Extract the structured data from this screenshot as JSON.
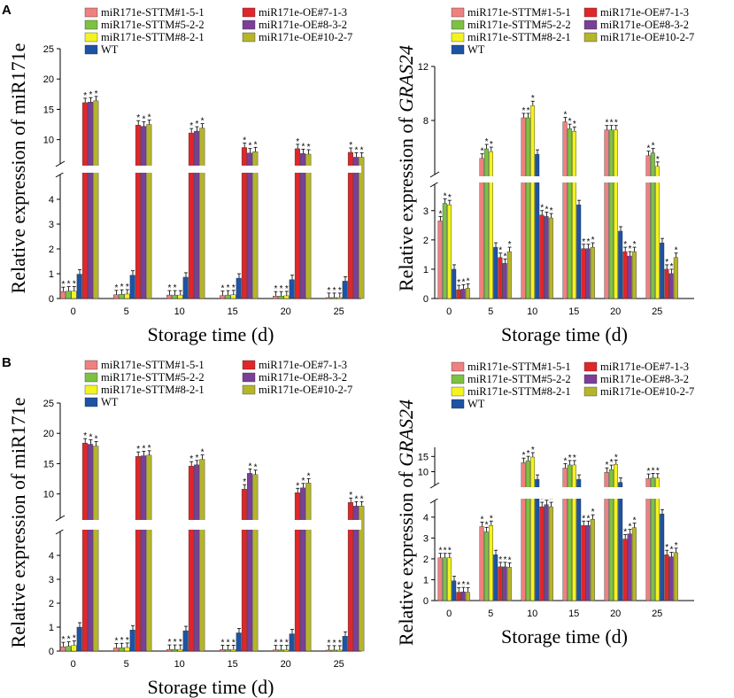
{
  "panel_labels": [
    "A",
    "B"
  ],
  "series_colors": [
    "#f08080",
    "#7cc242",
    "#f3f321",
    "#1c53a4",
    "#e0262a",
    "#7a3f98",
    "#b5b52a"
  ],
  "chart_data": [
    {
      "id": "A-left",
      "panel": "A",
      "type": "bar",
      "title": "",
      "xlabel": "Storage time (d)",
      "ylabel": "Relative expression of miR171e",
      "ylabel_italic": "",
      "categories": [
        "0",
        "5",
        "10",
        "15",
        "20",
        "25"
      ],
      "y_break": true,
      "lower_ylim": [
        0,
        5
      ],
      "lower_ticks": [
        "0",
        "1",
        "2",
        "3",
        "4"
      ],
      "upper_ylim": [
        6,
        25
      ],
      "upper_ticks": [
        "10",
        "15",
        "20",
        "25"
      ],
      "legend": [
        "miR171e-STTM#1-5-1",
        "miR171e-OE#7-1-3",
        "miR171e-STTM#5-2-2",
        "miR171e-OE#8-3-2",
        "miR171e-STTM#8-2-1",
        "miR171e-OE#10-2-7",
        "WT"
      ],
      "series": [
        {
          "name": "miR171e-STTM#1-5-1",
          "values": [
            0.28,
            0.15,
            0.14,
            0.12,
            0.1,
            0.04
          ],
          "stars": [
            "*",
            "*",
            "*",
            "*",
            "*",
            "*"
          ]
        },
        {
          "name": "miR171e-STTM#5-2-2",
          "values": [
            0.3,
            0.17,
            0.14,
            0.14,
            0.1,
            0.04
          ],
          "stars": [
            "*",
            "*",
            "*",
            "*",
            "*",
            "*"
          ]
        },
        {
          "name": "miR171e-STTM#8-2-1",
          "values": [
            0.3,
            0.18,
            0.14,
            0.15,
            0.11,
            0.04
          ],
          "stars": [
            "*",
            "*",
            "",
            "*",
            "*",
            "*"
          ]
        },
        {
          "name": "WT",
          "values": [
            0.98,
            0.94,
            0.86,
            0.82,
            0.76,
            0.7
          ],
          "stars": [
            "",
            "",
            "",
            "",
            "",
            ""
          ]
        },
        {
          "name": "miR171e-OE#7-1-3",
          "values": [
            16.1,
            12.4,
            11.1,
            8.7,
            8.5,
            7.9
          ],
          "stars": [
            "*",
            "*",
            "*",
            "*",
            "*",
            "*"
          ]
        },
        {
          "name": "miR171e-OE#8-3-2",
          "values": [
            16.2,
            12.2,
            11.4,
            7.8,
            7.7,
            7.1
          ],
          "stars": [
            "*",
            "*",
            "*",
            "*",
            "*",
            "*"
          ]
        },
        {
          "name": "miR171e-OE#10-2-7",
          "values": [
            16.4,
            12.5,
            11.9,
            8.0,
            7.6,
            7.1
          ],
          "stars": [
            "*",
            "*",
            "*",
            "*",
            "*",
            "*"
          ]
        }
      ]
    },
    {
      "id": "A-right",
      "panel": "A",
      "type": "bar",
      "title": "",
      "xlabel": "Storage time (d)",
      "ylabel": "Relative expression of ",
      "ylabel_italic": "GRAS24",
      "categories": [
        "0",
        "5",
        "10",
        "15",
        "20",
        "25"
      ],
      "y_break": true,
      "lower_ylim": [
        0,
        3.9
      ],
      "lower_ticks": [
        "0",
        "1",
        "2",
        "3"
      ],
      "upper_ylim": [
        4,
        12
      ],
      "upper_ticks": [
        "8",
        "12"
      ],
      "legend": [
        "miR171e-STTM#1-5-1",
        "miR171e-OE#7-1-3",
        "miR171e-STTM#5-2-2",
        "miR171e-OE#8-3-2",
        "miR171e-STTM#8-2-1",
        "miR171e-OE#10-2-7",
        "WT"
      ],
      "series": [
        {
          "name": "miR171e-STTM#1-5-1",
          "values": [
            2.65,
            5.2,
            8.2,
            7.9,
            7.3,
            5.4
          ],
          "stars": [
            "*",
            "*",
            "*",
            "*",
            "*",
            "*"
          ]
        },
        {
          "name": "miR171e-STTM#5-2-2",
          "values": [
            3.25,
            5.9,
            8.2,
            7.4,
            7.3,
            5.6
          ],
          "stars": [
            "*",
            "*",
            "*",
            "*",
            "*",
            "*"
          ]
        },
        {
          "name": "miR171e-STTM#8-2-1",
          "values": [
            3.2,
            5.7,
            9.1,
            7.2,
            7.3,
            4.6
          ],
          "stars": [
            "*",
            "*",
            "*",
            "*",
            "*",
            "*"
          ]
        },
        {
          "name": "WT",
          "values": [
            1.0,
            1.75,
            5.5,
            3.2,
            2.3,
            1.9
          ],
          "stars": [
            "",
            "",
            "",
            "",
            "",
            ""
          ]
        },
        {
          "name": "miR171e-OE#7-1-3",
          "values": [
            0.3,
            1.4,
            2.85,
            1.7,
            1.6,
            1.0
          ],
          "stars": [
            "*",
            "*",
            "*",
            "*",
            "*",
            "*"
          ]
        },
        {
          "name": "miR171e-OE#8-3-2",
          "values": [
            0.32,
            1.2,
            2.8,
            1.7,
            1.45,
            0.85
          ],
          "stars": [
            "*",
            "*",
            "*",
            "*",
            "*",
            "*"
          ]
        },
        {
          "name": "miR171e-OE#10-2-7",
          "values": [
            0.35,
            1.6,
            2.75,
            1.75,
            1.6,
            1.4
          ],
          "stars": [
            "*",
            "*",
            "*",
            "*",
            "*",
            "*"
          ]
        }
      ]
    },
    {
      "id": "B-left",
      "panel": "B",
      "type": "bar",
      "title": "",
      "xlabel": "Storage time (d)",
      "ylabel": "Relative expression of miR171e",
      "ylabel_italic": "",
      "categories": [
        "0",
        "5",
        "10",
        "15",
        "20",
        "25"
      ],
      "y_break": true,
      "lower_ylim": [
        0,
        5
      ],
      "lower_ticks": [
        "0",
        "1",
        "2",
        "3",
        "4"
      ],
      "upper_ylim": [
        6,
        25
      ],
      "upper_ticks": [
        "10",
        "15",
        "20",
        "25"
      ],
      "legend": [
        "miR171e-STTM#1-5-1",
        "miR171e-OE#7-1-3",
        "miR171e-STTM#5-2-2",
        "miR171e-OE#8-3-2",
        "miR171e-STTM#8-2-1",
        "miR171e-OE#10-2-7",
        "WT"
      ],
      "series": [
        {
          "name": "miR171e-STTM#1-5-1",
          "values": [
            0.18,
            0.13,
            0.07,
            0.06,
            0.05,
            0.04
          ],
          "stars": [
            "*",
            "*",
            "*",
            "*",
            "*",
            "*"
          ]
        },
        {
          "name": "miR171e-STTM#5-2-2",
          "values": [
            0.2,
            0.14,
            0.07,
            0.06,
            0.05,
            0.04
          ],
          "stars": [
            "*",
            "*",
            "*",
            "*",
            "*",
            "*"
          ]
        },
        {
          "name": "miR171e-STTM#8-2-1",
          "values": [
            0.24,
            0.15,
            0.07,
            0.06,
            0.05,
            0.04
          ],
          "stars": [
            "*",
            "*",
            "*",
            "*",
            "*",
            "*"
          ]
        },
        {
          "name": "WT",
          "values": [
            1.0,
            0.88,
            0.85,
            0.76,
            0.72,
            0.62
          ],
          "stars": [
            "",
            "",
            "",
            "",
            "",
            ""
          ]
        },
        {
          "name": "miR171e-OE#7-1-3",
          "values": [
            18.4,
            16.2,
            14.6,
            10.8,
            10.2,
            8.6
          ],
          "stars": [
            "*",
            "*",
            "*",
            "*",
            "*",
            "*"
          ]
        },
        {
          "name": "miR171e-OE#8-3-2",
          "values": [
            18.2,
            16.3,
            14.8,
            13.4,
            11.0,
            8.0
          ],
          "stars": [
            "*",
            "*",
            "*",
            "*",
            "*",
            "*"
          ]
        },
        {
          "name": "miR171e-OE#10-2-7",
          "values": [
            17.9,
            16.4,
            15.7,
            13.2,
            11.8,
            8.0
          ],
          "stars": [
            "*",
            "*",
            "*",
            "*",
            "*",
            "*"
          ]
        }
      ]
    },
    {
      "id": "B-right",
      "panel": "B",
      "type": "bar",
      "title": "",
      "xlabel": "Storage time (d)",
      "ylabel": "Relative expression of ",
      "ylabel_italic": "GRAS24",
      "categories": [
        "0",
        "5",
        "10",
        "15",
        "20",
        "25"
      ],
      "y_break": true,
      "lower_ylim": [
        0,
        4.8
      ],
      "lower_ticks": [
        "0",
        "1",
        "2",
        "3",
        "4"
      ],
      "upper_ylim": [
        5.5,
        18
      ],
      "upper_ticks": [
        "10",
        "15"
      ],
      "legend": [
        "miR171e-STTM#1-5-1",
        "miR171e-OE#7-1-3",
        "miR171e-STTM#5-2-2",
        "miR171e-OE#8-3-2",
        "miR171e-STTM#8-2-1",
        "miR171e-OE#10-2-7",
        "WT"
      ],
      "series": [
        {
          "name": "miR171e-STTM#1-5-1",
          "values": [
            2.05,
            3.55,
            13.0,
            11.2,
            9.8,
            7.8
          ],
          "stars": [
            "*",
            "*",
            "*",
            "*",
            "*",
            "*"
          ]
        },
        {
          "name": "miR171e-STTM#5-2-2",
          "values": [
            2.05,
            3.3,
            13.6,
            12.2,
            10.7,
            8.0
          ],
          "stars": [
            "*",
            "*",
            "*",
            "*",
            "*",
            "*"
          ]
        },
        {
          "name": "miR171e-STTM#8-2-1",
          "values": [
            2.05,
            3.6,
            14.8,
            12.2,
            12.4,
            7.9
          ],
          "stars": [
            "*",
            "*",
            "*",
            "*",
            "*",
            "*"
          ]
        },
        {
          "name": "WT",
          "values": [
            0.95,
            2.2,
            7.5,
            7.5,
            6.5,
            4.15
          ],
          "stars": [
            "",
            "",
            "",
            "",
            "",
            ""
          ]
        },
        {
          "name": "miR171e-OE#7-1-3",
          "values": [
            0.4,
            1.62,
            4.5,
            3.6,
            2.95,
            2.2
          ],
          "stars": [
            "*",
            "*",
            "*",
            "*",
            "*",
            "*"
          ]
        },
        {
          "name": "miR171e-OE#8-3-2",
          "values": [
            0.42,
            1.62,
            4.6,
            3.6,
            3.2,
            2.1
          ],
          "stars": [
            "*",
            "*",
            "*",
            "*",
            "*",
            "*"
          ]
        },
        {
          "name": "miR171e-OE#10-2-7",
          "values": [
            0.4,
            1.6,
            4.5,
            3.9,
            3.5,
            2.3
          ],
          "stars": [
            "*",
            "*",
            "*",
            "*",
            "*",
            "*"
          ]
        }
      ]
    }
  ]
}
